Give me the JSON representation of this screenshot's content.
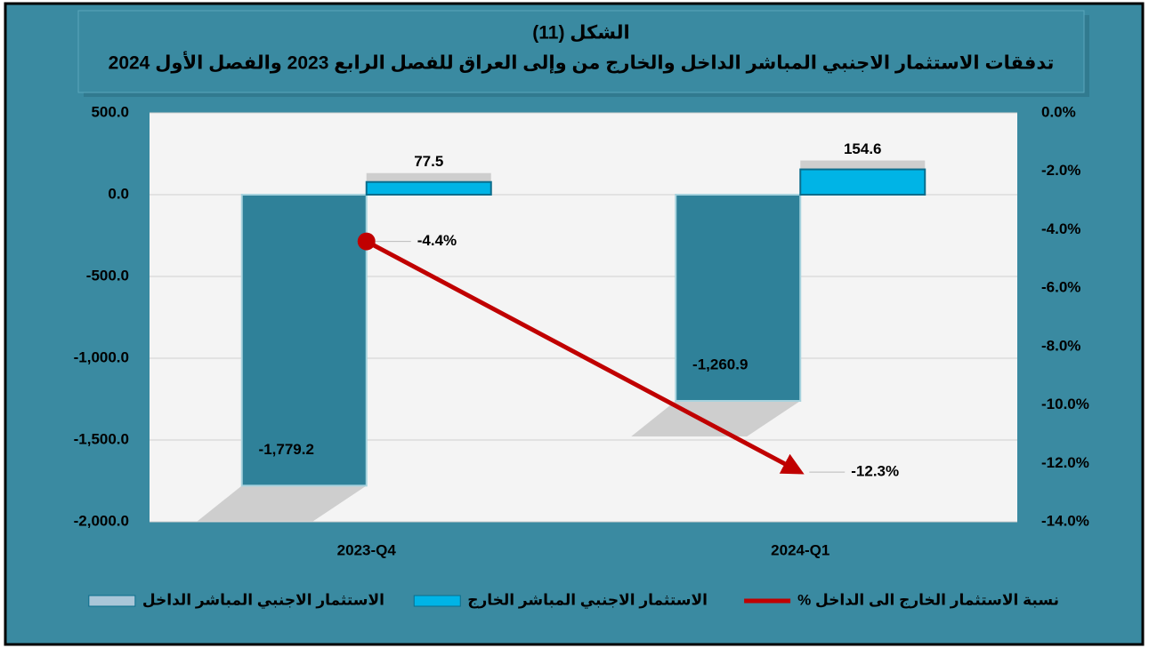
{
  "chart_data": {
    "type": "bar",
    "title": "الشكل (11)",
    "subtitle": "تدفقات الاستثمار الاجنبي المباشر الداخل والخارج من وإلى العراق للفصل الرابع 2023 والفصل الأول 2024",
    "categories": [
      "2023-Q4",
      "2024-Q1"
    ],
    "series": [
      {
        "name": "الاستثمار الاجنبي المباشر الداخل",
        "color": "#2f8199",
        "values": [
          -1779.2,
          -1260.9
        ],
        "value_labels": [
          "-1,779.2",
          "-1,260.9"
        ]
      },
      {
        "name": "الاستثمار الاجنبي المباشر الخارج",
        "color": "#00b4e6",
        "values": [
          77.5,
          154.6
        ]
      },
      {
        "name": "نسبة الاستثمار الخارج الى الداخل %",
        "color": "#c00000",
        "type": "line",
        "axis": "y2",
        "values": [
          -4.4,
          -12.3
        ],
        "value_labels": [
          "-4.4%",
          "-12.3%"
        ]
      }
    ],
    "ylim": [
      -2000,
      500
    ],
    "yticks": [
      {
        "value": 500,
        "label": "500.0"
      },
      {
        "value": 0,
        "label": "0.0"
      },
      {
        "value": -500,
        "label": "-500.0"
      },
      {
        "value": -1000,
        "label": "-1,000.0"
      },
      {
        "value": -1500,
        "label": "-1,500.0"
      },
      {
        "value": -2000,
        "label": "-2,000.0"
      }
    ],
    "y2lim": [
      -14,
      0
    ],
    "y2ticks": [
      {
        "value": 0,
        "label": "0.0%"
      },
      {
        "value": -2,
        "label": "-2.0%"
      },
      {
        "value": -4,
        "label": "-4.0%"
      },
      {
        "value": -6,
        "label": "-6.0%"
      },
      {
        "value": -8,
        "label": "-8.0%"
      },
      {
        "value": -10,
        "label": "-10.0%"
      },
      {
        "value": -12,
        "label": "-12.0%"
      },
      {
        "value": -14,
        "label": "-14.0%"
      }
    ],
    "grid": true,
    "legend": "bottom"
  }
}
